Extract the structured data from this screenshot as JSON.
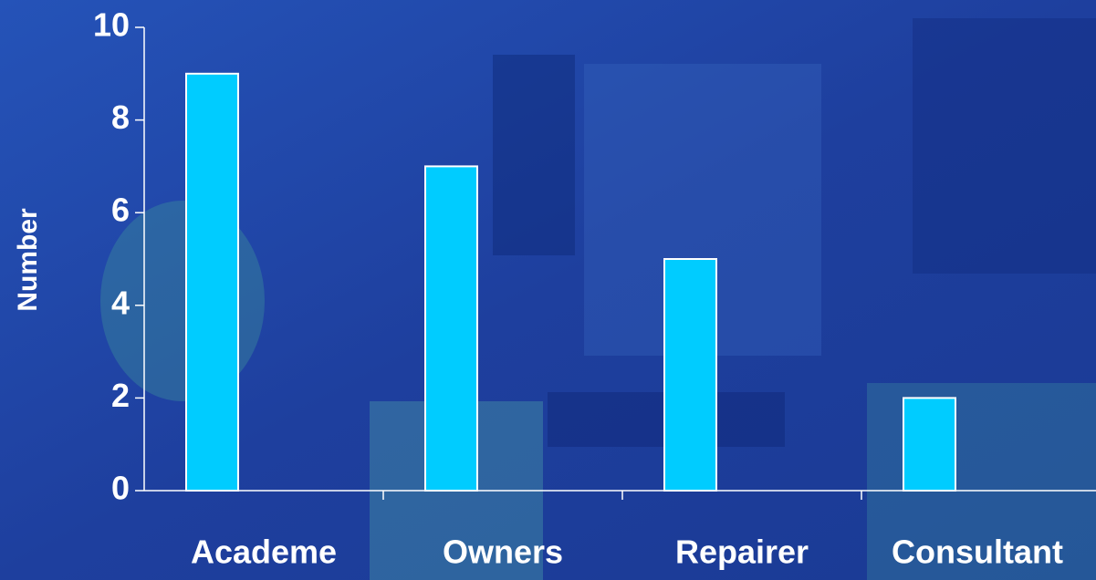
{
  "chart_data": {
    "type": "bar",
    "y_label": "Number",
    "categories": [
      "Academe",
      "Owners",
      "Repairer",
      "Consultant"
    ],
    "values": [
      9,
      7,
      5,
      2
    ],
    "color": "#00ccff",
    "ylim": [
      0,
      10
    ],
    "yticks": [
      0,
      2,
      4,
      6,
      8,
      10
    ],
    "grid": false
  }
}
